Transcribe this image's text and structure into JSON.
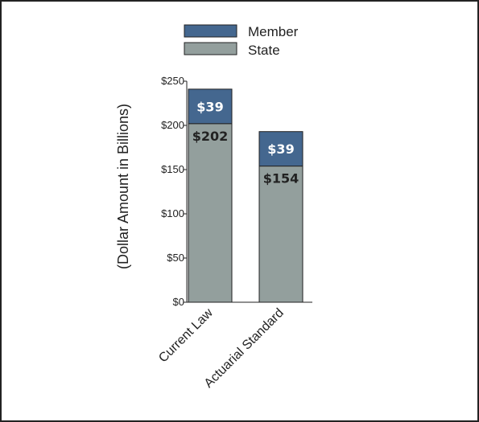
{
  "colors": {
    "state": "#939f9d",
    "member": "#44678f",
    "member_label": "#ffffff",
    "state_label": "#222222",
    "frame": "#222222"
  },
  "chart_data": {
    "type": "bar",
    "stacked": true,
    "categories": [
      "Current Law",
      "Actuarial Standard"
    ],
    "series": [
      {
        "name": "State",
        "values": [
          202,
          154
        ],
        "labels": [
          "$202",
          "$154"
        ]
      },
      {
        "name": "Member",
        "values": [
          39,
          39
        ],
        "labels": [
          "$39",
          "$39"
        ]
      }
    ],
    "ylabel": "(Dollar Amount in Billions)",
    "ylim": [
      0,
      250
    ],
    "yticks": [
      0,
      50,
      100,
      150,
      200,
      250
    ],
    "ytick_labels": [
      "$0",
      "$50",
      "$100",
      "$150",
      "$200",
      "$250"
    ],
    "legend": {
      "position": "top",
      "entries": [
        "Member",
        "State"
      ]
    },
    "grid": false
  }
}
